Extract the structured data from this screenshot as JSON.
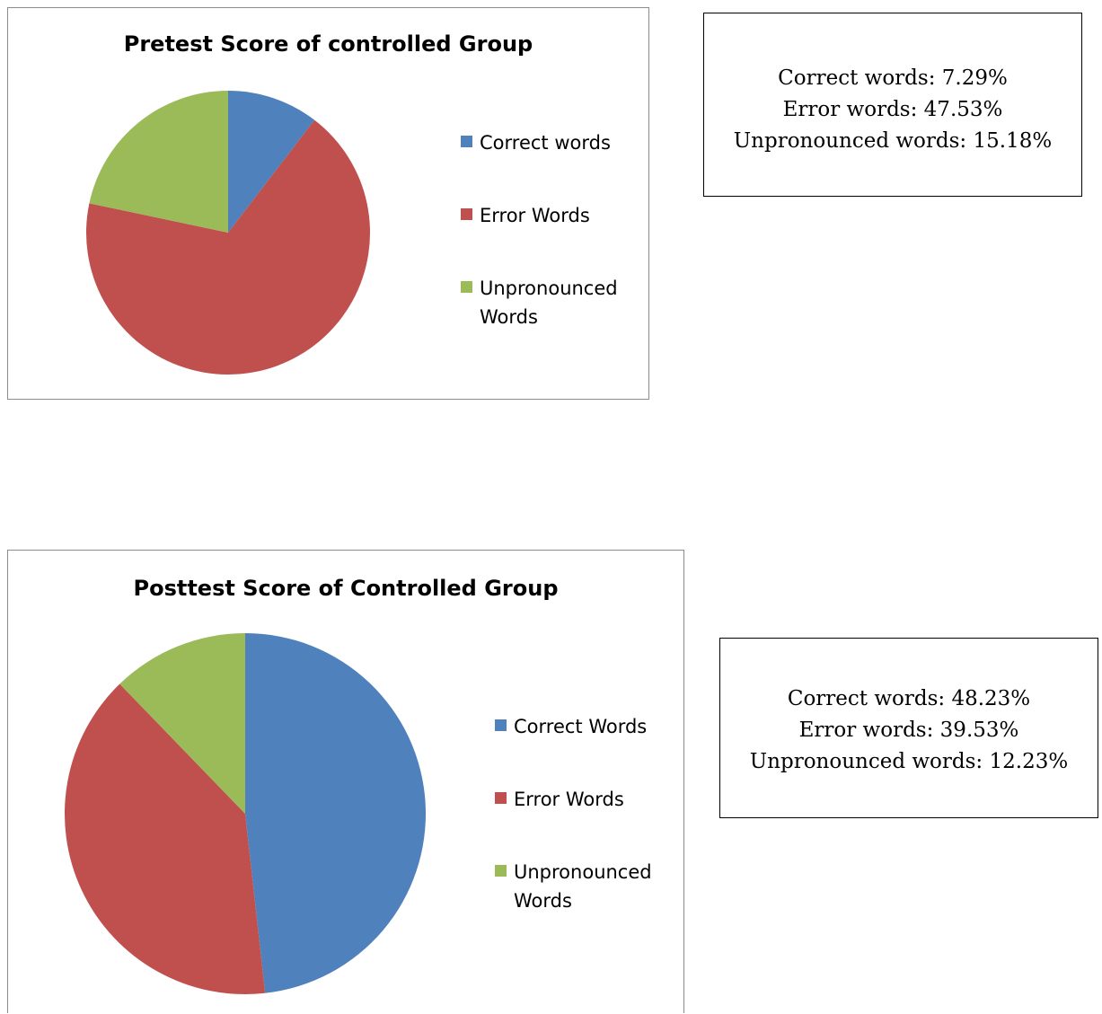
{
  "colors": {
    "blue": "#4f81bd",
    "red": "#c0504d",
    "green": "#9bbb59"
  },
  "chart_data": [
    {
      "type": "pie",
      "title": "Pretest Score of controlled Group",
      "categories": [
        "Correct words",
        "Error Words",
        "Unpronounced Words"
      ],
      "values": [
        7.29,
        47.53,
        15.18
      ],
      "colors": [
        "#4f81bd",
        "#c0504d",
        "#9bbb59"
      ],
      "legend": "right"
    },
    {
      "type": "pie",
      "title": "Posttest Score of Controlled Group",
      "categories": [
        "Correct Words",
        "Error Words",
        "Unpronounced Words"
      ],
      "values": [
        48.23,
        39.53,
        12.23
      ],
      "colors": [
        "#4f81bd",
        "#c0504d",
        "#9bbb59"
      ],
      "legend": "right"
    }
  ],
  "stat_boxes": [
    {
      "lines": [
        "Correct words: 7.29%",
        "Error words: 47.53%",
        "Unpronounced words: 15.18%"
      ]
    },
    {
      "lines": [
        "Correct words: 48.23%",
        "Error words: 39.53%",
        "Unpronounced words: 12.23%"
      ]
    }
  ]
}
